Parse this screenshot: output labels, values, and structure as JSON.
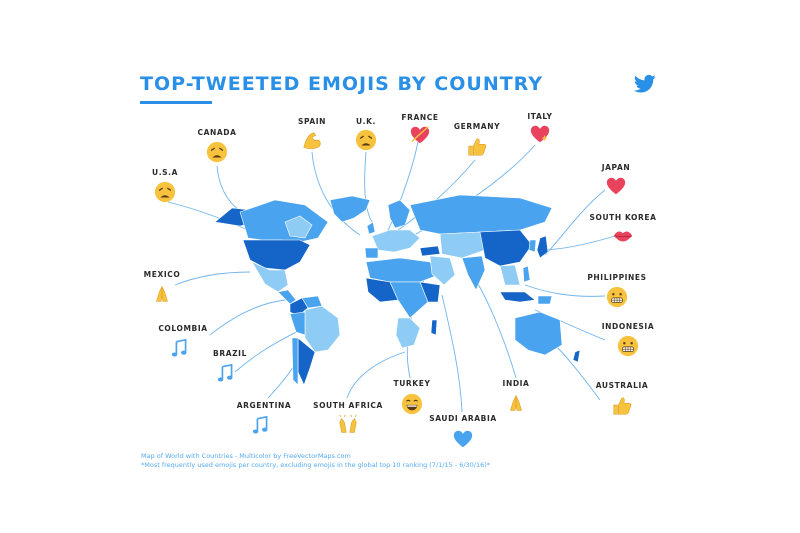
{
  "title": "TOP-TWEETED EMOJIS BY COUNTRY",
  "brand_icon": "twitter-bird-icon",
  "colors": {
    "accent": "#2a8fe6",
    "land_dark": "#1565c8",
    "land_mid": "#4aa3ee",
    "land_light": "#8fccf5",
    "line": "#6fb4ec",
    "emoji_yellow": "#f7c23e",
    "emoji_red": "#e8425c"
  },
  "countries": [
    {
      "name": "CANADA",
      "emoji": "weary-face-icon"
    },
    {
      "name": "SPAIN",
      "emoji": "flexed-biceps-icon"
    },
    {
      "name": "U.K.",
      "emoji": "weary-face-icon"
    },
    {
      "name": "FRANCE",
      "emoji": "heart-with-arrow-icon"
    },
    {
      "name": "GERMANY",
      "emoji": "thumbs-up-icon"
    },
    {
      "name": "ITALY",
      "emoji": "sparkling-heart-icon"
    },
    {
      "name": "U.S.A",
      "emoji": "weary-face-icon"
    },
    {
      "name": "JAPAN",
      "emoji": "growing-heart-icon"
    },
    {
      "name": "SOUTH KOREA",
      "emoji": "kiss-mark-icon"
    },
    {
      "name": "MEXICO",
      "emoji": "folded-hands-icon"
    },
    {
      "name": "PHILIPPINES",
      "emoji": "grimacing-face-icon"
    },
    {
      "name": "COLOMBIA",
      "emoji": "musical-notes-icon"
    },
    {
      "name": "INDONESIA",
      "emoji": "grimacing-face-icon"
    },
    {
      "name": "BRAZIL",
      "emoji": "musical-notes-icon"
    },
    {
      "name": "TURKEY",
      "emoji": "grinning-face-icon"
    },
    {
      "name": "INDIA",
      "emoji": "folded-hands-icon"
    },
    {
      "name": "AUSTRALIA",
      "emoji": "thumbs-up-icon"
    },
    {
      "name": "ARGENTINA",
      "emoji": "musical-notes-icon"
    },
    {
      "name": "SOUTH AFRICA",
      "emoji": "raising-hands-icon"
    },
    {
      "name": "SAUDI ARABIA",
      "emoji": "blue-heart-icon"
    }
  ],
  "footnotes": [
    "Map of World with Countries - Multicolor by FreeVectorMaps.com",
    "*Most frequently used emojis per country, excluding emojis in the global top 10 ranking (7/1/15 - 6/30/16)*"
  ]
}
